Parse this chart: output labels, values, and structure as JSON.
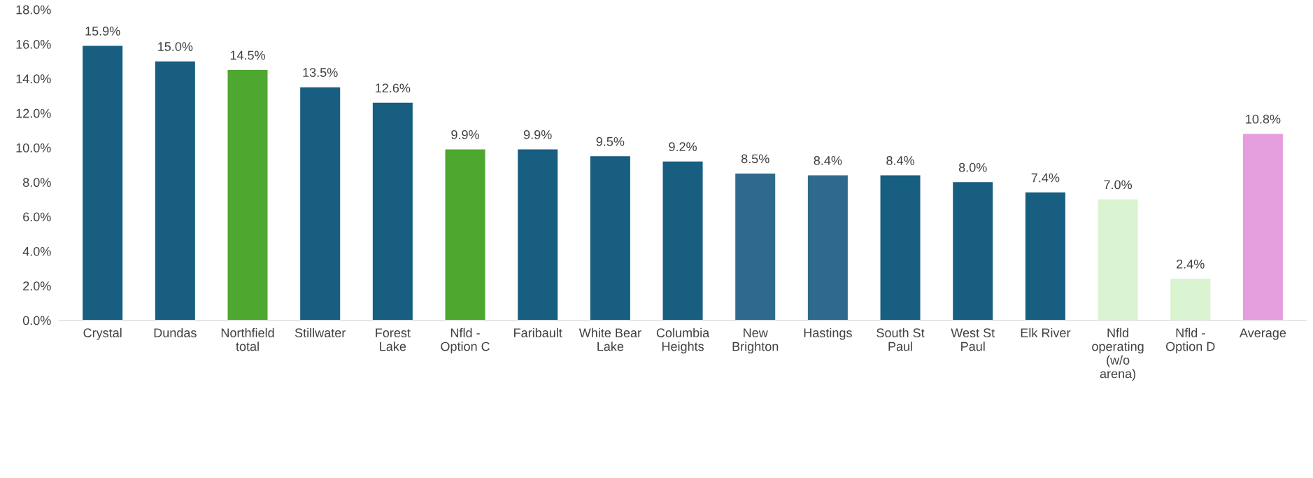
{
  "chart_data": {
    "type": "bar",
    "categories": [
      "Crystal",
      "Dundas",
      "Northfield\ntotal",
      "Stillwater",
      "Forest\nLake",
      "Nfld -\nOption C",
      "Faribault",
      "White Bear\nLake",
      "Columbia\nHeights",
      "New\nBrighton",
      "Hastings",
      "South St\nPaul",
      "West St\nPaul",
      "Elk River",
      "Nfld\noperating\n(w/o\narena)",
      "Nfld -\nOption D",
      "Average"
    ],
    "values": [
      15.9,
      15.0,
      14.5,
      13.5,
      12.6,
      9.9,
      9.9,
      9.5,
      9.2,
      8.5,
      8.4,
      8.4,
      8.0,
      7.4,
      7.0,
      2.4,
      10.8
    ],
    "colors": [
      "#175e80",
      "#175e80",
      "#4ea72e",
      "#175e80",
      "#175e80",
      "#4ea72e",
      "#175e80",
      "#175e80",
      "#175e80",
      "#2e6a8c",
      "#2e6a8c",
      "#175e80",
      "#175e80",
      "#175e80",
      "#d9f2d0",
      "#d9f2d0",
      "#e59edd"
    ],
    "value_labels": [
      "15.9%",
      "15.0%",
      "14.5%",
      "13.5%",
      "12.6%",
      "9.9%",
      "9.9%",
      "9.5%",
      "9.2%",
      "8.5%",
      "8.4%",
      "8.4%",
      "8.0%",
      "7.4%",
      "7.0%",
      "2.4%",
      "10.8%"
    ],
    "ylim": [
      0,
      18
    ],
    "yticks": [
      {
        "value": 0,
        "label": "0.0%"
      },
      {
        "value": 2,
        "label": "2.0%"
      },
      {
        "value": 4,
        "label": "4.0%"
      },
      {
        "value": 6,
        "label": "6.0%"
      },
      {
        "value": 8,
        "label": "8.0%"
      },
      {
        "value": 10,
        "label": "10.0%"
      },
      {
        "value": 12,
        "label": "12.0%"
      },
      {
        "value": 14,
        "label": "14.0%"
      },
      {
        "value": 16,
        "label": "16.0%"
      },
      {
        "value": 18,
        "label": "18.0%"
      }
    ],
    "grid": false,
    "legend": false
  }
}
